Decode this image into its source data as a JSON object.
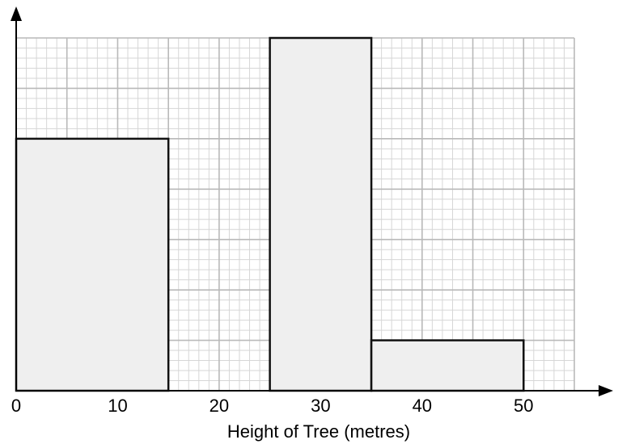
{
  "chart_data": {
    "type": "histogram",
    "xlabel": "Height of Tree (metres)",
    "ylabel": "",
    "xlim": [
      0,
      55
    ],
    "ylim": [
      0,
      7
    ],
    "x_major_step": 5,
    "x_minor_step": 1,
    "y_major_step": 1,
    "y_minor_step": 0.2,
    "x_tick_labels": [
      "0",
      "10",
      "20",
      "30",
      "40",
      "50"
    ],
    "x_tick_values": [
      0,
      10,
      20,
      30,
      40,
      50
    ],
    "y_tick_labels": [],
    "grid": true,
    "bars": [
      {
        "x0": 0,
        "x1": 15,
        "height": 5
      },
      {
        "x0": 25,
        "x1": 35,
        "height": 7
      },
      {
        "x0": 35,
        "x1": 50,
        "height": 1
      }
    ]
  }
}
